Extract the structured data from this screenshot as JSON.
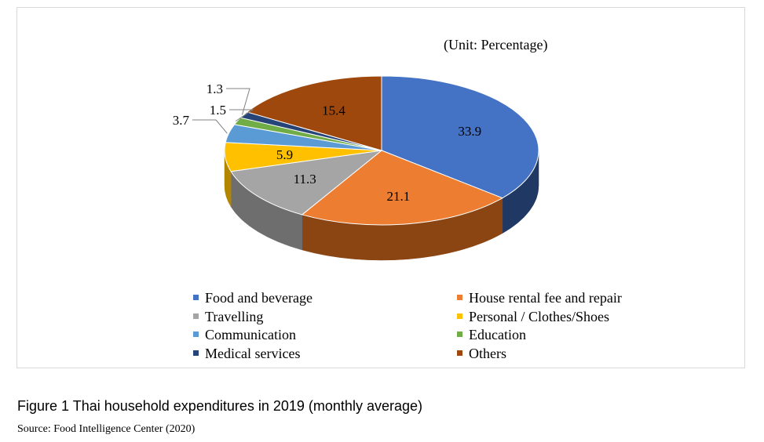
{
  "unit_label": "(Unit: Percentage)",
  "caption": "Figure 1 Thai household expenditures in 2019 (monthly average)",
  "source": "Source: Food Intelligence Center (2020)",
  "chart_data": {
    "type": "pie",
    "style": "3d",
    "title": "",
    "legend_position": "bottom",
    "slices": [
      {
        "name": "Food and beverage",
        "value": 33.9,
        "label": "33.9",
        "color": "#4472c4",
        "side": "#1f3864"
      },
      {
        "name": "House rental fee and repair",
        "value": 21.1,
        "label": "21.1",
        "color": "#ed7d31",
        "side": "#8b4513"
      },
      {
        "name": "Travelling",
        "value": 11.3,
        "label": "11.3",
        "color": "#a5a5a5",
        "side": "#6e6e6e"
      },
      {
        "name": "Personal / Clothes/Shoes",
        "value": 5.9,
        "label": "5.9",
        "color": "#ffc000",
        "side": "#b38600"
      },
      {
        "name": "Communication",
        "value": 3.7,
        "label": "3.7",
        "color": "#5b9bd5",
        "side": "#35679a"
      },
      {
        "name": "Education",
        "value": 1.5,
        "label": "1.5",
        "color": "#70ad47",
        "side": "#4a7530"
      },
      {
        "name": "Medical services",
        "value": 1.3,
        "label": "1.3",
        "color": "#264478",
        "side": "#15284a"
      },
      {
        "name": "Others",
        "value": 15.4,
        "label": "15.4",
        "color": "#9e480e",
        "side": "#5e2a08"
      }
    ]
  }
}
